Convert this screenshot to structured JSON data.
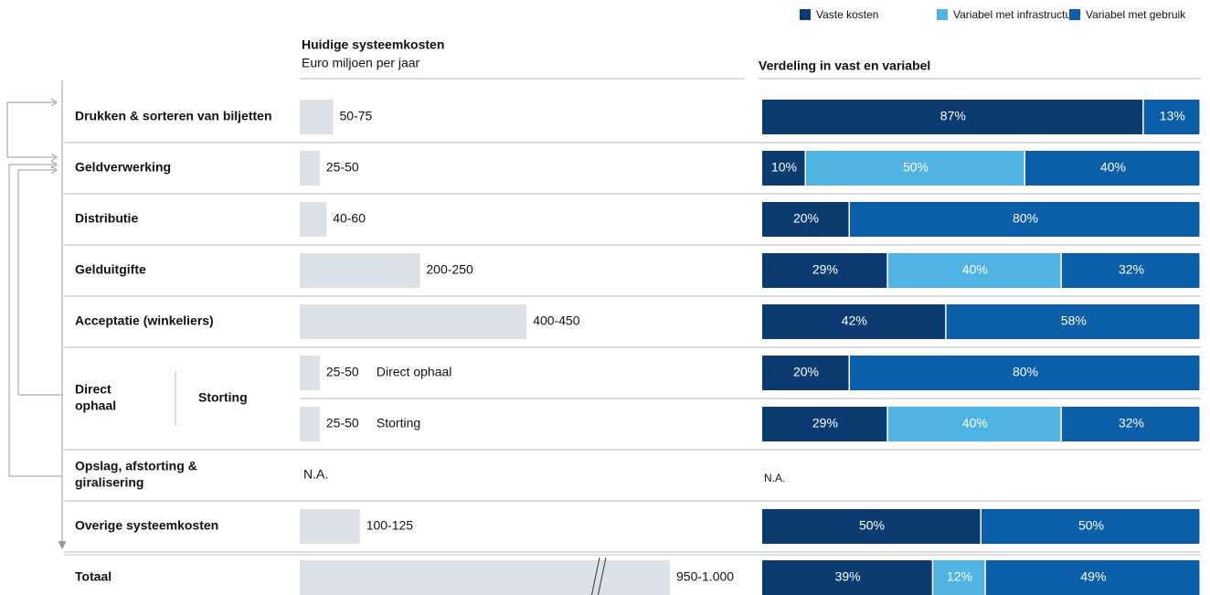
{
  "legend": [
    {
      "name": "Vaste kosten",
      "color": "#0b3b70"
    },
    {
      "name": "Variabel met infrastructuur",
      "color": "#4fb3e3"
    },
    {
      "name": "Variabel met gebruik",
      "color": "#0b5ea8"
    }
  ],
  "left_header": {
    "title": "Huidige systeemkosten",
    "subtitle": "Euro miljoen per jaar"
  },
  "right_header": "Verdeling in vast en variabel",
  "bar_color": "#dae1e7",
  "rows": [
    {
      "label": "Drukken & sorteren van biljetten",
      "cost": {
        "low": 50,
        "high": 75,
        "label": "50-75"
      },
      "segments": [
        {
          "series": 0,
          "value": 87,
          "label": "87%"
        },
        {
          "series": 2,
          "value": 13,
          "label": "13%"
        }
      ]
    },
    {
      "label": "Geldverwerking",
      "cost": {
        "low": 25,
        "high": 50,
        "label": "25-50"
      },
      "segments": [
        {
          "series": 0,
          "value": 10,
          "label": "10%"
        },
        {
          "series": 1,
          "value": 50,
          "label": "50%"
        },
        {
          "series": 2,
          "value": 40,
          "label": "40%"
        }
      ]
    },
    {
      "label": "Distributie",
      "cost": {
        "low": 40,
        "high": 60,
        "label": "40-60"
      },
      "segments": [
        {
          "series": 0,
          "value": 20,
          "label": "20%"
        },
        {
          "series": 2,
          "value": 80,
          "label": "80%"
        }
      ]
    },
    {
      "label": "Gelduitgifte",
      "cost": {
        "low": 200,
        "high": 250,
        "label": "200-250"
      },
      "segments": [
        {
          "series": 0,
          "value": 29,
          "label": "29%"
        },
        {
          "series": 1,
          "value": 40,
          "label": "40%"
        },
        {
          "series": 2,
          "value": 32,
          "label": "32%"
        }
      ]
    },
    {
      "label": "Acceptatie (winkeliers)",
      "cost": {
        "low": 400,
        "high": 450,
        "label": "400-450"
      },
      "segments": [
        {
          "series": 0,
          "value": 42,
          "label": "42%"
        },
        {
          "series": 2,
          "value": 58,
          "label": "58%"
        }
      ]
    },
    {
      "sublabel": "Direct ophaal",
      "cost": {
        "low": 25,
        "high": 50,
        "label": "25-50"
      },
      "segments": [
        {
          "series": 0,
          "value": 20,
          "label": "20%"
        },
        {
          "series": 2,
          "value": 80,
          "label": "80%"
        }
      ]
    },
    {
      "sublabel": "Storting",
      "cost": {
        "low": 25,
        "high": 50,
        "label": "25-50"
      },
      "segments": [
        {
          "series": 0,
          "value": 29,
          "label": "29%"
        },
        {
          "series": 1,
          "value": 40,
          "label": "40%"
        },
        {
          "series": 2,
          "value": 32,
          "label": "32%"
        }
      ]
    },
    {
      "label": "Opslag, afstorting & giralisering",
      "cost_na": "N.A.",
      "segments_na": "N.A."
    },
    {
      "label": "Overige systeemkosten",
      "cost": {
        "low": 100,
        "high": 125,
        "label": "100-125"
      },
      "segments": [
        {
          "series": 0,
          "value": 50,
          "label": "50%"
        },
        {
          "series": 2,
          "value": 50,
          "label": "50%"
        }
      ]
    },
    {
      "label": "Totaal",
      "cost": {
        "low": 950,
        "high": 1000,
        "label": "950-1.000"
      },
      "axis_break": true,
      "segments": [
        {
          "series": 0,
          "value": 39,
          "label": "39%"
        },
        {
          "series": 1,
          "value": 12,
          "label": "12%"
        },
        {
          "series": 2,
          "value": 49,
          "label": "49%"
        }
      ]
    }
  ],
  "group": {
    "label": "Direct ophaal",
    "sublabel": "Storting"
  }
}
